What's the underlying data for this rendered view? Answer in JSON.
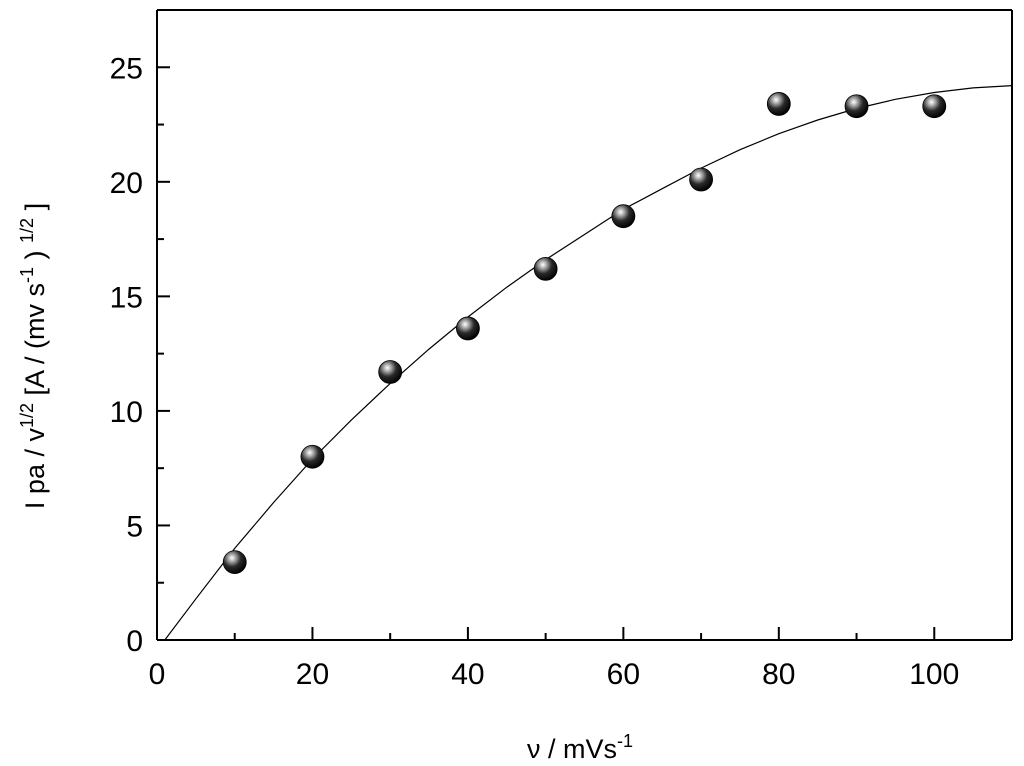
{
  "chart_data": {
    "type": "scatter",
    "xlabel": {
      "prefix": "ν / mVs",
      "sup": "-1"
    },
    "ylabel": {
      "prefix": "I pa / v",
      "sup1": "1/2",
      "mid": " [A / (mv s",
      "sup2": "-1",
      "mid2": " ) ",
      "sup3": "1/2",
      "suffix": " ]"
    },
    "xlim": [
      0,
      110
    ],
    "ylim": [
      0,
      27.5
    ],
    "x_ticks": [
      0,
      20,
      40,
      60,
      80,
      100
    ],
    "y_ticks": [
      0,
      5,
      10,
      15,
      20,
      25
    ],
    "x_tick_labels": [
      "0",
      "20",
      "40",
      "60",
      "80",
      "100"
    ],
    "y_tick_labels": [
      "0",
      "5",
      "10",
      "15",
      "20",
      "25"
    ],
    "x_minor_step": 10,
    "y_minor_step": 2.5,
    "grid": false,
    "points": [
      {
        "x": 10,
        "y": 3.4
      },
      {
        "x": 20,
        "y": 8.0
      },
      {
        "x": 30,
        "y": 11.7
      },
      {
        "x": 40,
        "y": 13.6
      },
      {
        "x": 50,
        "y": 16.2
      },
      {
        "x": 60,
        "y": 18.5
      },
      {
        "x": 70,
        "y": 20.1
      },
      {
        "x": 80,
        "y": 23.4
      },
      {
        "x": 90,
        "y": 23.3
      },
      {
        "x": 100,
        "y": 23.3
      }
    ],
    "fit_curve": {
      "x": [
        1,
        5,
        10,
        15,
        20,
        25,
        30,
        35,
        40,
        45,
        50,
        55,
        60,
        65,
        70,
        75,
        80,
        85,
        90,
        95,
        100,
        105,
        110
      ],
      "y": [
        0.0,
        1.8,
        4.0,
        6.0,
        7.9,
        9.6,
        11.2,
        12.7,
        14.1,
        15.4,
        16.6,
        17.7,
        18.8,
        19.7,
        20.6,
        21.4,
        22.1,
        22.7,
        23.2,
        23.6,
        23.9,
        24.1,
        24.2
      ]
    }
  }
}
